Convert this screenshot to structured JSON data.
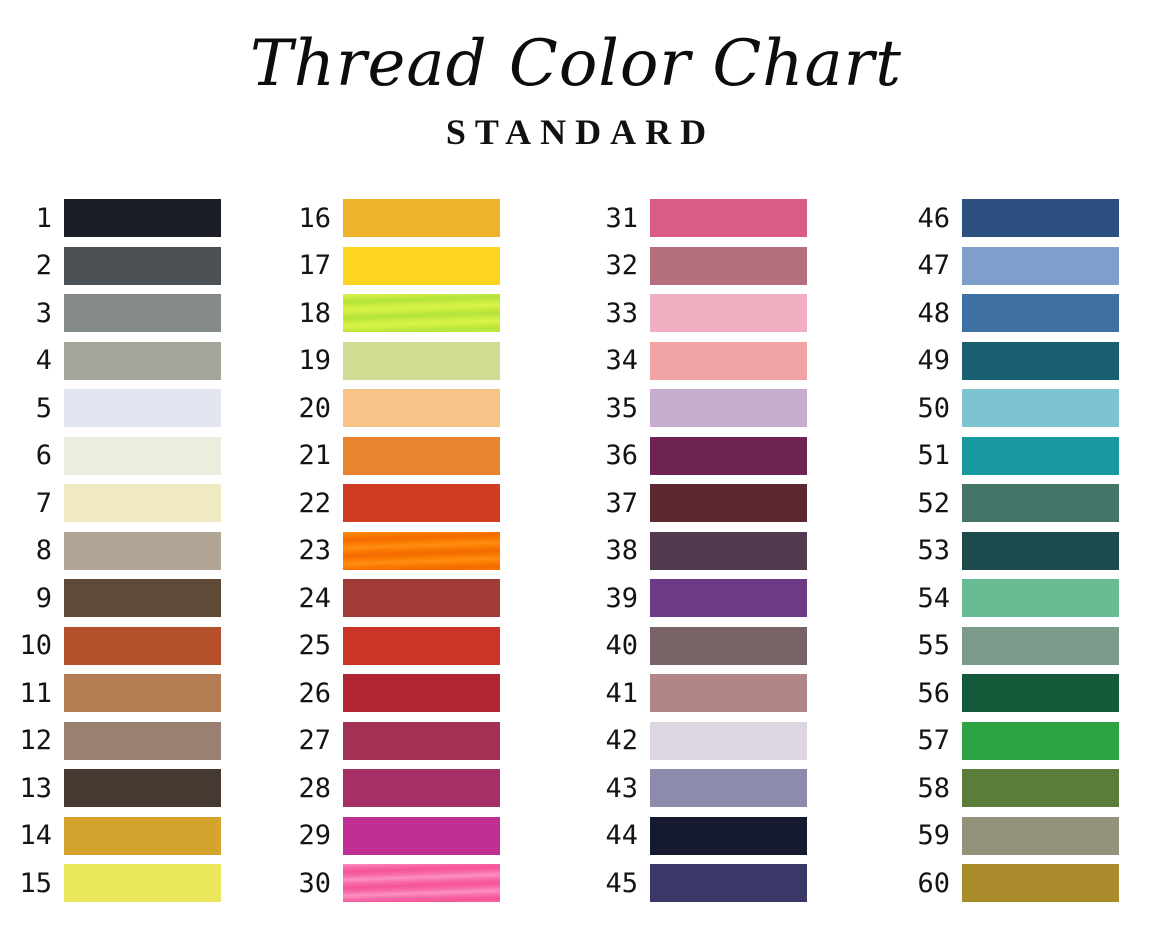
{
  "header": {
    "title": "Thread Color Chart",
    "subtitle": "STANDARD"
  },
  "chart_data": {
    "type": "table",
    "title": "Thread Color Chart",
    "subtitle": "STANDARD",
    "columns": 4,
    "rows_per_column": 15,
    "swatches": [
      {
        "num": "1",
        "color": "#1a1d25"
      },
      {
        "num": "2",
        "color": "#4a5054"
      },
      {
        "num": "3",
        "color": "#858b8b"
      },
      {
        "num": "4",
        "color": "#a2a69b"
      },
      {
        "num": "5",
        "color": "#e2e6f0"
      },
      {
        "num": "6",
        "color": "#eceddd"
      },
      {
        "num": "7",
        "color": "#efeac2"
      },
      {
        "num": "8",
        "color": "#b3a595"
      },
      {
        "num": "9",
        "color": "#5e4a37"
      },
      {
        "num": "10",
        "color": "#b5512a"
      },
      {
        "num": "11",
        "color": "#b47c52"
      },
      {
        "num": "12",
        "color": "#9a8071"
      },
      {
        "num": "13",
        "color": "#463931"
      },
      {
        "num": "14",
        "color": "#d4a42f"
      },
      {
        "num": "15",
        "color": "#ebe75d"
      },
      {
        "num": "16",
        "color": "#eeb32b"
      },
      {
        "num": "17",
        "color": "#fdd41f"
      },
      {
        "num": "18",
        "color": "#c8ec3e",
        "texture": [
          "#daf348",
          "#b2e43a"
        ]
      },
      {
        "num": "19",
        "color": "#cfdc92"
      },
      {
        "num": "20",
        "color": "#f7c386"
      },
      {
        "num": "21",
        "color": "#e8832e"
      },
      {
        "num": "22",
        "color": "#d23c25"
      },
      {
        "num": "23",
        "color": "#fa7a00",
        "texture": [
          "#ff8e13",
          "#f26a00"
        ]
      },
      {
        "num": "24",
        "color": "#a03b35"
      },
      {
        "num": "25",
        "color": "#cb3527"
      },
      {
        "num": "26",
        "color": "#b12431"
      },
      {
        "num": "27",
        "color": "#a33153"
      },
      {
        "num": "28",
        "color": "#a72f67"
      },
      {
        "num": "29",
        "color": "#c12e92"
      },
      {
        "num": "30",
        "color": "#f869aa",
        "texture": [
          "#fb90c1",
          "#f55398"
        ]
      },
      {
        "num": "31",
        "color": "#d95c87"
      },
      {
        "num": "32",
        "color": "#b56e7d"
      },
      {
        "num": "33",
        "color": "#f0aec1"
      },
      {
        "num": "34",
        "color": "#f2a4a5"
      },
      {
        "num": "35",
        "color": "#c6aed1"
      },
      {
        "num": "36",
        "color": "#6f2351"
      },
      {
        "num": "37",
        "color": "#5d2931"
      },
      {
        "num": "38",
        "color": "#523a50"
      },
      {
        "num": "39",
        "color": "#6f3a85"
      },
      {
        "num": "40",
        "color": "#786467"
      },
      {
        "num": "41",
        "color": "#b18686"
      },
      {
        "num": "42",
        "color": "#ddd5e0"
      },
      {
        "num": "43",
        "color": "#8c8bae"
      },
      {
        "num": "44",
        "color": "#161a30"
      },
      {
        "num": "45",
        "color": "#3a3866"
      },
      {
        "num": "46",
        "color": "#2d5080"
      },
      {
        "num": "47",
        "color": "#7e9fcb"
      },
      {
        "num": "48",
        "color": "#3e70a4"
      },
      {
        "num": "49",
        "color": "#1a5f71"
      },
      {
        "num": "50",
        "color": "#7ec4d0"
      },
      {
        "num": "51",
        "color": "#17999f"
      },
      {
        "num": "52",
        "color": "#457569"
      },
      {
        "num": "53",
        "color": "#1d4a4c"
      },
      {
        "num": "54",
        "color": "#68bb92"
      },
      {
        "num": "55",
        "color": "#7d9b8b"
      },
      {
        "num": "56",
        "color": "#14593a"
      },
      {
        "num": "57",
        "color": "#2da344"
      },
      {
        "num": "58",
        "color": "#5c7c39"
      },
      {
        "num": "59",
        "color": "#93937b"
      },
      {
        "num": "60",
        "color": "#aa8c2c"
      }
    ]
  }
}
